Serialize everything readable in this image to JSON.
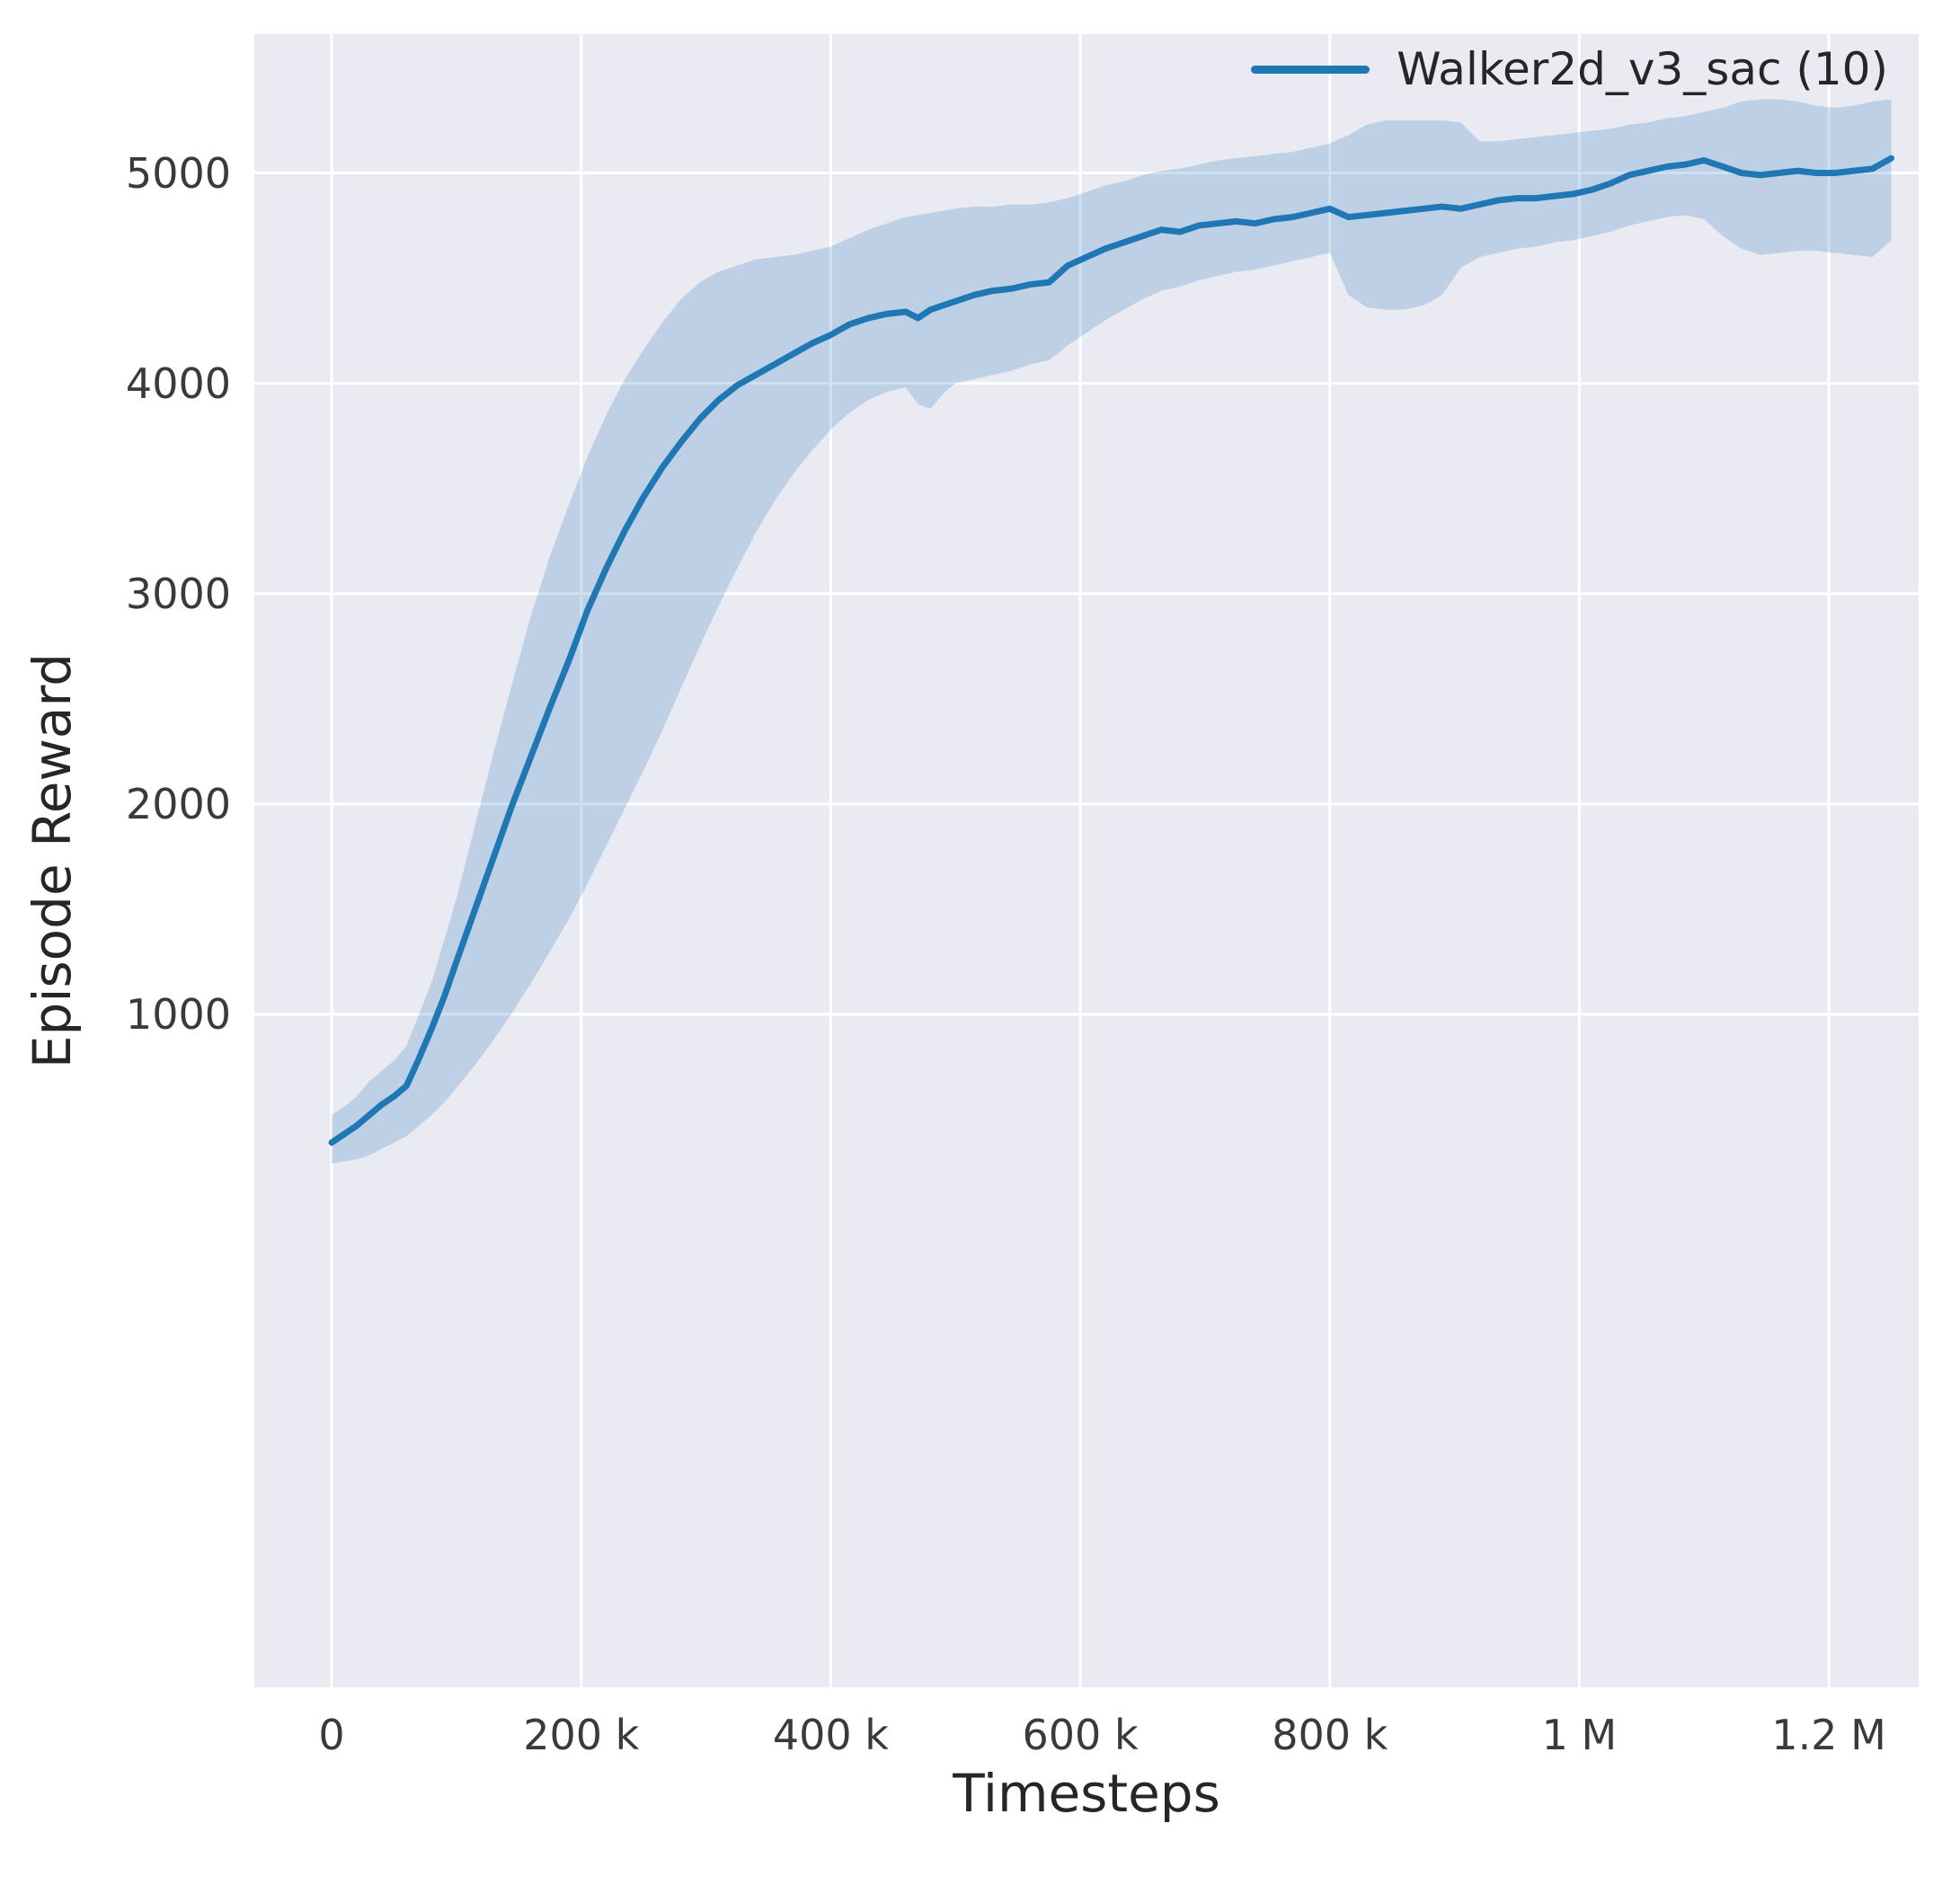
{
  "chart_data": {
    "type": "line",
    "title": "",
    "xlabel": "Timesteps",
    "ylabel": "Episode Reward",
    "xlim": [
      -62000,
      1272000
    ],
    "ylim": [
      -2200,
      5660
    ],
    "grid": true,
    "axes_background": "#eaeaf2",
    "grid_color": "#ffffff",
    "legend_position": "upper right",
    "xticks": {
      "values": [
        0,
        200000,
        400000,
        600000,
        800000,
        1000000,
        1200000
      ],
      "labels": [
        "0",
        "200 k",
        "400 k",
        "600 k",
        "800 k",
        "1 M",
        "1.2 M"
      ]
    },
    "yticks": {
      "values": [
        1000,
        2000,
        3000,
        4000,
        5000
      ],
      "labels": [
        "1000",
        "2000",
        "3000",
        "4000",
        "5000"
      ]
    },
    "series": [
      {
        "name": "Walker2d_v3_sac (10)",
        "color": "#1f77b4",
        "band_alpha": 0.22,
        "x": [
          0,
          10000,
          20000,
          30000,
          40000,
          50000,
          60000,
          70000,
          80000,
          90000,
          100000,
          115000,
          130000,
          145000,
          160000,
          175000,
          190000,
          205000,
          220000,
          235000,
          250000,
          265000,
          280000,
          295000,
          310000,
          325000,
          340000,
          355000,
          370000,
          385000,
          400000,
          415000,
          430000,
          445000,
          460000,
          470000,
          480000,
          490000,
          500000,
          515000,
          530000,
          545000,
          560000,
          575000,
          590000,
          605000,
          620000,
          635000,
          650000,
          665000,
          680000,
          695000,
          710000,
          725000,
          740000,
          755000,
          770000,
          785000,
          800000,
          815000,
          830000,
          845000,
          860000,
          875000,
          890000,
          905000,
          920000,
          935000,
          950000,
          965000,
          980000,
          995000,
          1010000,
          1025000,
          1040000,
          1055000,
          1070000,
          1085000,
          1100000,
          1115000,
          1130000,
          1145000,
          1160000,
          1175000,
          1190000,
          1205000,
          1220000,
          1235000,
          1250000
        ],
        "mean": [
          390,
          430,
          470,
          520,
          570,
          610,
          660,
          790,
          930,
          1080,
          1250,
          1500,
          1750,
          2000,
          2230,
          2460,
          2680,
          2920,
          3120,
          3300,
          3460,
          3600,
          3720,
          3830,
          3920,
          3990,
          4040,
          4090,
          4140,
          4190,
          4230,
          4280,
          4310,
          4330,
          4340,
          4310,
          4350,
          4370,
          4390,
          4420,
          4440,
          4450,
          4470,
          4480,
          4560,
          4600,
          4640,
          4670,
          4700,
          4730,
          4720,
          4750,
          4760,
          4770,
          4760,
          4780,
          4790,
          4810,
          4830,
          4790,
          4800,
          4810,
          4820,
          4830,
          4840,
          4830,
          4850,
          4870,
          4880,
          4880,
          4890,
          4900,
          4920,
          4950,
          4990,
          5010,
          5030,
          5040,
          5060,
          5030,
          5000,
          4990,
          5000,
          5010,
          5000,
          5000,
          5010,
          5020,
          5070
        ],
        "lower": [
          290,
          300,
          310,
          330,
          360,
          390,
          420,
          470,
          520,
          580,
          650,
          760,
          880,
          1010,
          1150,
          1300,
          1450,
          1620,
          1800,
          1980,
          2160,
          2350,
          2550,
          2750,
          2940,
          3120,
          3290,
          3440,
          3570,
          3680,
          3780,
          3860,
          3920,
          3960,
          3980,
          3900,
          3880,
          3950,
          4000,
          4020,
          4040,
          4060,
          4090,
          4110,
          4180,
          4240,
          4300,
          4350,
          4400,
          4440,
          4460,
          4490,
          4510,
          4530,
          4540,
          4560,
          4580,
          4600,
          4620,
          4420,
          4360,
          4350,
          4350,
          4370,
          4420,
          4550,
          4600,
          4620,
          4640,
          4650,
          4670,
          4680,
          4700,
          4720,
          4750,
          4770,
          4790,
          4800,
          4780,
          4700,
          4640,
          4610,
          4620,
          4630,
          4630,
          4620,
          4610,
          4600,
          4680
        ],
        "upper": [
          520,
          560,
          610,
          680,
          730,
          780,
          850,
          1000,
          1150,
          1350,
          1550,
          1900,
          2250,
          2580,
          2900,
          3180,
          3420,
          3650,
          3850,
          4020,
          4160,
          4290,
          4400,
          4480,
          4530,
          4560,
          4590,
          4600,
          4610,
          4630,
          4650,
          4690,
          4730,
          4760,
          4790,
          4800,
          4810,
          4820,
          4830,
          4840,
          4840,
          4850,
          4850,
          4860,
          4880,
          4910,
          4940,
          4960,
          4990,
          5010,
          5020,
          5040,
          5060,
          5070,
          5080,
          5090,
          5100,
          5120,
          5140,
          5180,
          5230,
          5250,
          5250,
          5250,
          5250,
          5240,
          5150,
          5150,
          5160,
          5170,
          5180,
          5190,
          5200,
          5210,
          5230,
          5240,
          5260,
          5270,
          5290,
          5310,
          5340,
          5350,
          5350,
          5340,
          5320,
          5310,
          5320,
          5340,
          5350
        ]
      }
    ]
  }
}
